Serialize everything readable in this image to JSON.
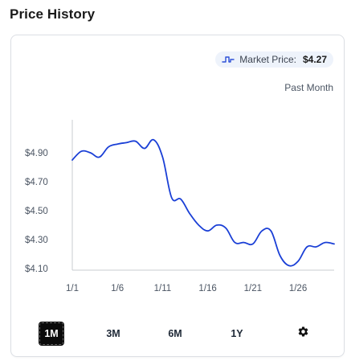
{
  "header": {
    "title": "Price History"
  },
  "market": {
    "label": "Market Price:",
    "value": "$4.27",
    "icon": "price-pulse-icon"
  },
  "range_caption": "Past Month",
  "range_tabs": [
    {
      "label": "1M",
      "active": true
    },
    {
      "label": "3M",
      "active": false
    },
    {
      "label": "6M",
      "active": false
    },
    {
      "label": "1Y",
      "active": false
    }
  ],
  "settings": {
    "icon": "gear-icon"
  },
  "colors": {
    "line": "#1a3fd6",
    "axis": "#c8ccd2",
    "accent_active_tab": "#0b0b0b",
    "pill_bg": "#eef3fb"
  },
  "chart_data": {
    "type": "line",
    "title": "",
    "xlabel": "",
    "ylabel": "",
    "ylim": [
      4.1,
      5.0
    ],
    "xlim": [
      1,
      30
    ],
    "y_ticks": [
      4.9,
      4.7,
      4.5,
      4.3,
      4.1
    ],
    "y_tick_labels": [
      "$4.90",
      "$4.70",
      "$4.50",
      "$4.30",
      "$4.10"
    ],
    "x_ticks": [
      1,
      6,
      11,
      16,
      21,
      26
    ],
    "x_tick_labels": [
      "1/1",
      "1/6",
      "1/11",
      "1/16",
      "1/21",
      "1/26"
    ],
    "grid": false,
    "series": [
      {
        "x": [
          1,
          2,
          3,
          4,
          5,
          6,
          7,
          8,
          9,
          10,
          11,
          12,
          13,
          14,
          15,
          16,
          17,
          18,
          19,
          20,
          21,
          22,
          23,
          24,
          25,
          26,
          27,
          28,
          29,
          30
        ],
        "y": [
          4.85,
          4.91,
          4.9,
          4.87,
          4.94,
          4.96,
          4.97,
          4.98,
          4.93,
          4.99,
          4.87,
          4.59,
          4.58,
          4.48,
          4.4,
          4.36,
          4.4,
          4.38,
          4.28,
          4.28,
          4.27,
          4.36,
          4.36,
          4.19,
          4.12,
          4.15,
          4.25,
          4.25,
          4.28,
          4.27
        ]
      }
    ]
  }
}
